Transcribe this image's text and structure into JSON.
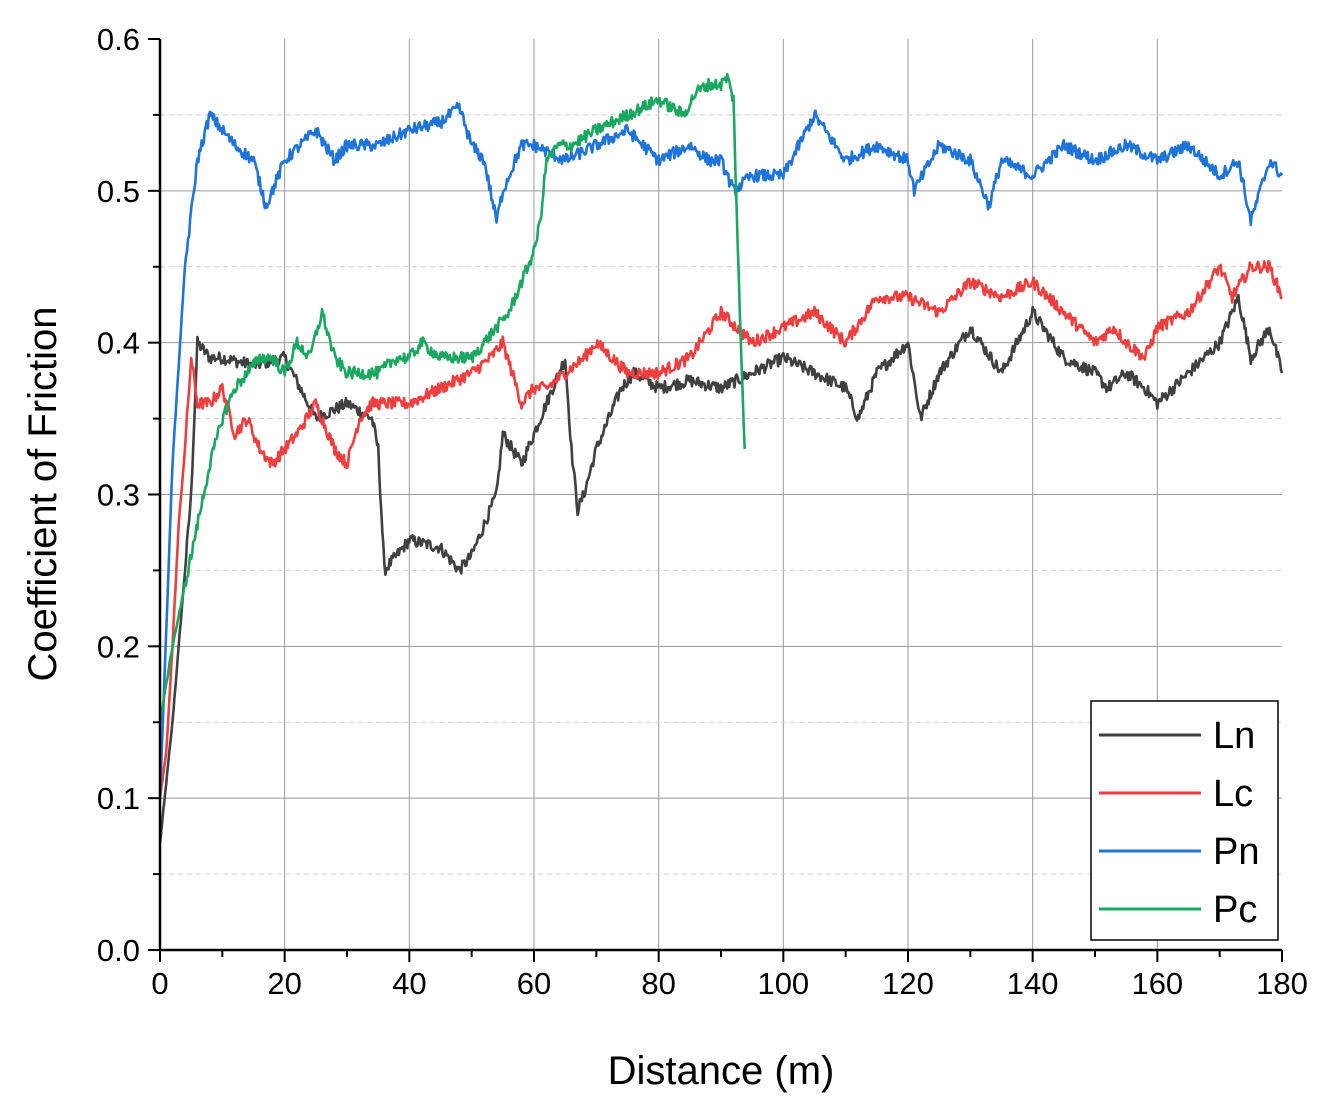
{
  "chart_data": {
    "type": "line",
    "title": "",
    "xlabel": "Distance (m)",
    "ylabel": "Coefficient of Friction",
    "xlim": [
      0,
      180
    ],
    "ylim": [
      0,
      0.6
    ],
    "x_ticks": [
      "0",
      "20",
      "40",
      "60",
      "80",
      "100",
      "120",
      "140",
      "160",
      "180"
    ],
    "y_ticks": [
      "0.0",
      "0.1",
      "0.2",
      "0.3",
      "0.4",
      "0.5",
      "0.6"
    ],
    "grid": true,
    "legend_position": "bottom-right",
    "series": [
      {
        "name": "Ln",
        "color": "#404040",
        "x": [
          0,
          2,
          4,
          5,
          6,
          8,
          10,
          15,
          20,
          25,
          30,
          34,
          35,
          36,
          38,
          40,
          45,
          48,
          50,
          52,
          54,
          55,
          58,
          60,
          62,
          64,
          65,
          66,
          67,
          68,
          70,
          72,
          74,
          76,
          80,
          85,
          90,
          95,
          100,
          105,
          110,
          112,
          115,
          120,
          122,
          125,
          130,
          135,
          140,
          145,
          150,
          152,
          155,
          158,
          160,
          165,
          170,
          173,
          175,
          178,
          180
        ],
        "y": [
          0.07,
          0.15,
          0.25,
          0.3,
          0.4,
          0.39,
          0.39,
          0.385,
          0.39,
          0.35,
          0.36,
          0.35,
          0.33,
          0.25,
          0.26,
          0.27,
          0.265,
          0.25,
          0.26,
          0.28,
          0.3,
          0.34,
          0.32,
          0.34,
          0.36,
          0.38,
          0.39,
          0.33,
          0.29,
          0.3,
          0.33,
          0.35,
          0.37,
          0.38,
          0.37,
          0.375,
          0.37,
          0.38,
          0.39,
          0.38,
          0.37,
          0.35,
          0.38,
          0.4,
          0.35,
          0.38,
          0.41,
          0.38,
          0.42,
          0.39,
          0.38,
          0.37,
          0.38,
          0.37,
          0.36,
          0.38,
          0.4,
          0.43,
          0.39,
          0.41,
          0.38
        ]
      },
      {
        "name": "Lc",
        "color": "#ee3e3e",
        "x": [
          0,
          1,
          2,
          3,
          4,
          5,
          6,
          8,
          10,
          12,
          14,
          16,
          18,
          20,
          22,
          25,
          28,
          30,
          32,
          34,
          36,
          40,
          45,
          50,
          53,
          55,
          58,
          60,
          62,
          65,
          68,
          70,
          75,
          80,
          85,
          90,
          95,
          100,
          105,
          110,
          115,
          120,
          125,
          130,
          135,
          140,
          145,
          150,
          153,
          155,
          158,
          160,
          165,
          170,
          172,
          175,
          178,
          180
        ],
        "y": [
          0.1,
          0.13,
          0.2,
          0.28,
          0.33,
          0.39,
          0.36,
          0.36,
          0.37,
          0.34,
          0.35,
          0.33,
          0.32,
          0.33,
          0.34,
          0.36,
          0.33,
          0.32,
          0.35,
          0.36,
          0.36,
          0.36,
          0.37,
          0.38,
          0.39,
          0.4,
          0.36,
          0.37,
          0.37,
          0.38,
          0.39,
          0.4,
          0.38,
          0.38,
          0.39,
          0.42,
          0.4,
          0.41,
          0.42,
          0.4,
          0.43,
          0.43,
          0.42,
          0.44,
          0.43,
          0.44,
          0.42,
          0.4,
          0.41,
          0.4,
          0.39,
          0.41,
          0.42,
          0.45,
          0.43,
          0.45,
          0.45,
          0.43
        ]
      },
      {
        "name": "Pn",
        "color": "#1e74d8",
        "x": [
          0,
          2,
          4,
          6,
          8,
          10,
          12,
          15,
          17,
          20,
          25,
          28,
          30,
          35,
          40,
          45,
          48,
          50,
          52,
          54,
          55,
          58,
          60,
          65,
          70,
          75,
          80,
          85,
          88,
          90,
          92,
          95,
          100,
          105,
          110,
          115,
          120,
          121,
          125,
          130,
          133,
          135,
          140,
          145,
          150,
          155,
          160,
          165,
          170,
          173,
          175,
          178,
          180
        ],
        "y": [
          0.1,
          0.32,
          0.45,
          0.52,
          0.55,
          0.54,
          0.53,
          0.52,
          0.49,
          0.52,
          0.54,
          0.52,
          0.53,
          0.53,
          0.54,
          0.545,
          0.555,
          0.53,
          0.52,
          0.48,
          0.5,
          0.53,
          0.53,
          0.52,
          0.53,
          0.54,
          0.52,
          0.53,
          0.52,
          0.52,
          0.5,
          0.51,
          0.51,
          0.55,
          0.52,
          0.53,
          0.52,
          0.5,
          0.53,
          0.52,
          0.49,
          0.52,
          0.51,
          0.53,
          0.52,
          0.53,
          0.52,
          0.53,
          0.51,
          0.52,
          0.48,
          0.52,
          0.51
        ]
      },
      {
        "name": "Pc",
        "color": "#1aa860",
        "x": [
          0,
          2,
          4,
          6,
          8,
          10,
          12,
          14,
          16,
          18,
          20,
          22,
          24,
          26,
          28,
          30,
          35,
          38,
          40,
          42,
          45,
          48,
          50,
          52,
          54,
          56,
          57,
          58,
          60,
          61,
          62,
          64,
          66,
          70,
          75,
          80,
          82,
          84,
          86,
          88,
          90,
          91,
          92,
          93,
          93.8
        ],
        "y": [
          0.15,
          0.2,
          0.24,
          0.28,
          0.32,
          0.35,
          0.37,
          0.38,
          0.39,
          0.39,
          0.38,
          0.4,
          0.39,
          0.42,
          0.39,
          0.38,
          0.38,
          0.39,
          0.39,
          0.4,
          0.39,
          0.39,
          0.39,
          0.4,
          0.41,
          0.42,
          0.43,
          0.44,
          0.46,
          0.48,
          0.52,
          0.53,
          0.53,
          0.54,
          0.55,
          0.56,
          0.555,
          0.55,
          0.565,
          0.57,
          0.57,
          0.575,
          0.56,
          0.42,
          0.33
        ]
      }
    ]
  }
}
